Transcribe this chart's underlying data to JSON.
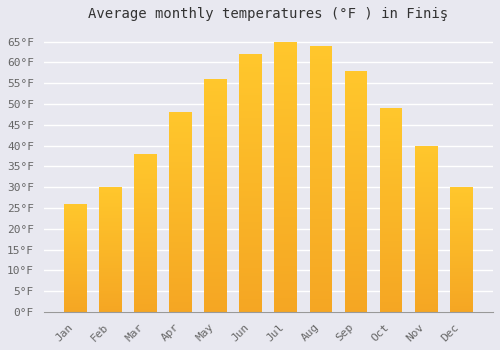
{
  "title": "Average monthly temperatures (°F ) in Finiş",
  "months": [
    "Jan",
    "Feb",
    "Mar",
    "Apr",
    "May",
    "Jun",
    "Jul",
    "Aug",
    "Sep",
    "Oct",
    "Nov",
    "Dec"
  ],
  "values": [
    26,
    30,
    38,
    48,
    56,
    62,
    65,
    64,
    58,
    49,
    40,
    30
  ],
  "bar_color_top": "#FFC72C",
  "bar_color_bottom": "#F5A623",
  "bar_edge_color": "none",
  "background_color": "#E8E8F0",
  "plot_bg_color": "#E8E8F0",
  "grid_color": "#FFFFFF",
  "ylim": [
    0,
    68
  ],
  "yticks": [
    0,
    5,
    10,
    15,
    20,
    25,
    30,
    35,
    40,
    45,
    50,
    55,
    60,
    65
  ],
  "title_fontsize": 10,
  "tick_fontsize": 8,
  "title_color": "#333333",
  "tick_color": "#666666",
  "font_family": "monospace"
}
